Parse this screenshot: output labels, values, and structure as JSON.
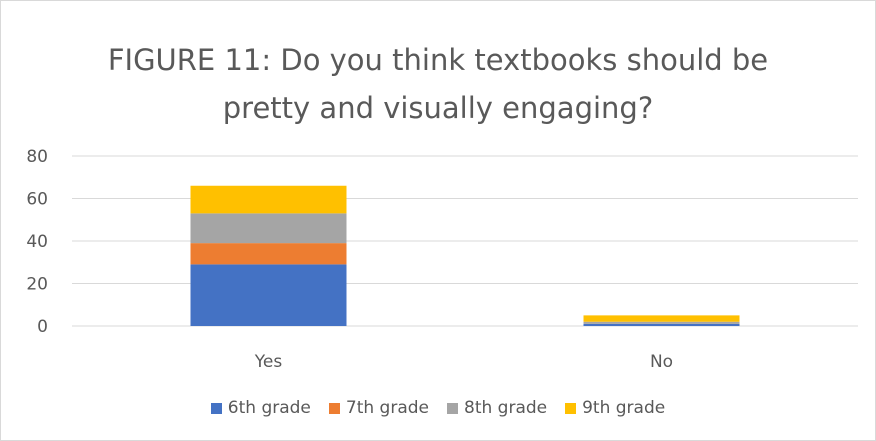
{
  "chart_data": {
    "type": "bar",
    "stacked": true,
    "title": "FIGURE 11: Do you think textbooks should be pretty and visually engaging?",
    "title_lines": [
      "FIGURE 11: Do you think textbooks should be",
      "pretty and visually engaging?"
    ],
    "categories": [
      "Yes",
      "No"
    ],
    "series": [
      {
        "name": "6th grade",
        "values": [
          29,
          1
        ],
        "color": "#4472c4"
      },
      {
        "name": "7th grade",
        "values": [
          10,
          0
        ],
        "color": "#ed7d31"
      },
      {
        "name": "8th grade",
        "values": [
          14,
          1
        ],
        "color": "#a5a5a5"
      },
      {
        "name": "9th grade",
        "values": [
          13,
          3
        ],
        "color": "#ffc000"
      }
    ],
    "ylim": [
      0,
      80
    ],
    "yticks": [
      0,
      20,
      40,
      60,
      80
    ],
    "grid": true,
    "legend_position": "bottom"
  }
}
